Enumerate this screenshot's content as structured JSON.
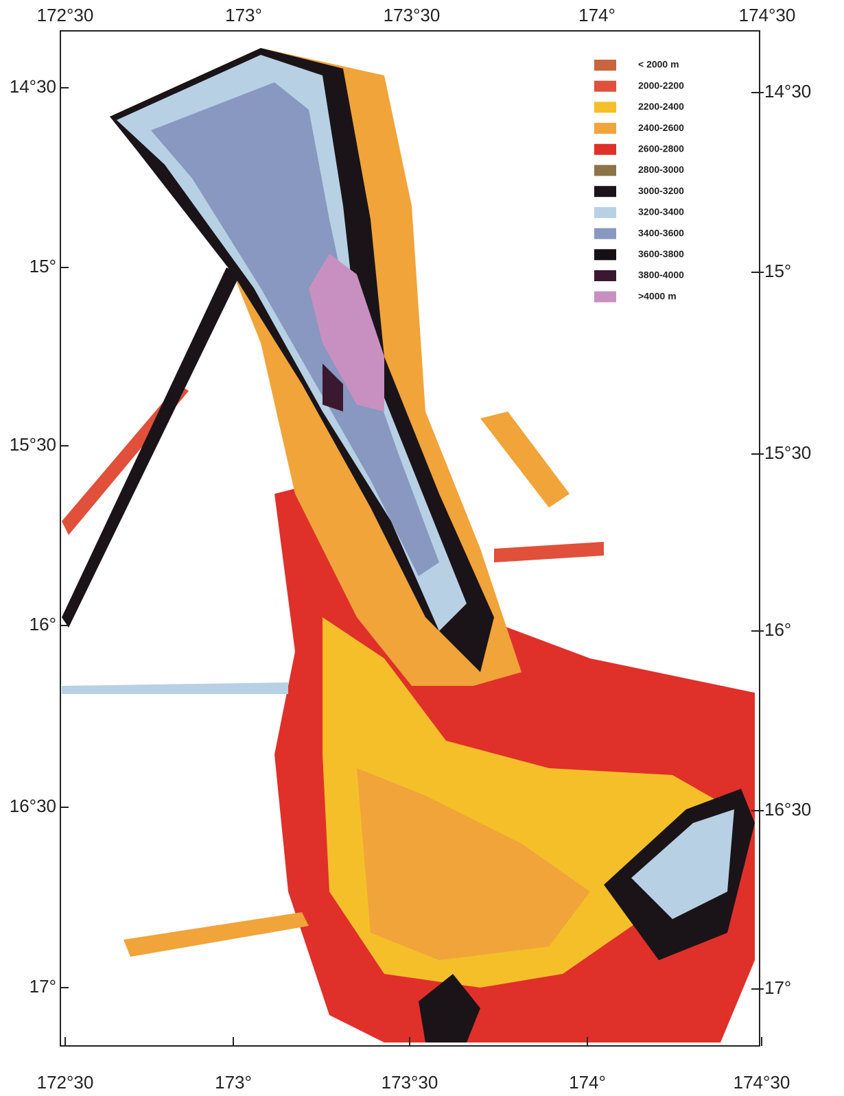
{
  "map": {
    "top_labels": [
      "172°30",
      "173°",
      "173°30",
      "174°",
      "174°30"
    ],
    "bottom_labels": [
      "172°30",
      "173°",
      "173°30",
      "174°",
      "174°30"
    ],
    "left_labels": [
      "14°30",
      "15°",
      "15°30",
      "16°",
      "16°30",
      "17°"
    ],
    "right_labels": [
      "14°30",
      "15°",
      "15°30",
      "16°",
      "16°30",
      "17°"
    ],
    "legend": [
      {
        "label": "< 2000 m",
        "color": "#c8643e"
      },
      {
        "label": "2000-2200",
        "color": "#e0503a"
      },
      {
        "label": "2200-2400",
        "color": "#f5bf2a"
      },
      {
        "label": "2400-2600",
        "color": "#f0a43a"
      },
      {
        "label": "2600-2800",
        "color": "#e0302a"
      },
      {
        "label": "2800-3000",
        "color": "#8a7448"
      },
      {
        "label": "3000-3200",
        "color": "#1a1418"
      },
      {
        "label": "3200-3400",
        "color": "#b8d0e4"
      },
      {
        "label": "3400-3600",
        "color": "#8898c0"
      },
      {
        "label": "3600-3800",
        "color": "#141014"
      },
      {
        "label": "3800-4000",
        "color": "#3a1830"
      },
      {
        "label": ">4000 m",
        "color": "#c890c0"
      }
    ]
  }
}
